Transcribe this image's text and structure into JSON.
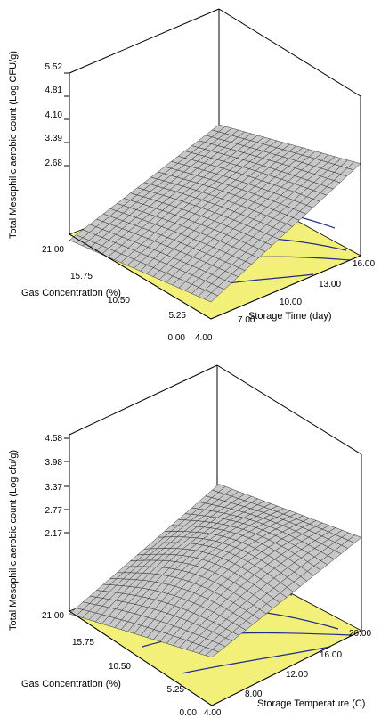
{
  "chart_data": [
    {
      "type": "surface",
      "zlabel": "Total Mesophilic aerobic count (Log CFU/g)",
      "xlabel": "Storage Time (day)",
      "ylabel": "Gas Concentration (%)",
      "z_ticks": [
        "2.68",
        "3.39",
        "4.10",
        "4.81",
        "5.52"
      ],
      "x_ticks": [
        "4.00",
        "7.00",
        "10.00",
        "13.00",
        "16.00"
      ],
      "y_ticks": [
        "0.00",
        "5.25",
        "10.50",
        "15.75",
        "21.00"
      ],
      "xlim": [
        4,
        16
      ],
      "ylim": [
        0,
        21
      ],
      "zlim": [
        2.68,
        5.52
      ],
      "corner_values": {
        "x_min_y_min": 3.2,
        "x_max_y_min": 5.5,
        "x_min_y_max": 2.5,
        "x_max_y_max": 4.1
      },
      "floor_color": "#f3f07a",
      "surface_color": "#c8c8c8",
      "contour_color": "#1e2c8f"
    },
    {
      "type": "surface",
      "zlabel": "Total Mesophilic aerobic count (Log cfu/g)",
      "xlabel": "Storage Temperature (C)",
      "ylabel": "Gas Concentration (%)",
      "z_ticks": [
        "2.17",
        "2.77",
        "3.37",
        "3.98",
        "4.58"
      ],
      "x_ticks": [
        "4.00",
        "8.00",
        "12.00",
        "16.00",
        "20.00"
      ],
      "y_ticks": [
        "0.00",
        "5.25",
        "10.50",
        "15.75",
        "21.00"
      ],
      "xlim": [
        4,
        20
      ],
      "ylim": [
        0,
        21
      ],
      "zlim": [
        2.17,
        4.58
      ],
      "corner_values": {
        "x_min_y_min": 3.4,
        "x_max_y_min": 4.55,
        "x_min_y_max": 2.1,
        "x_max_y_max": 3.5
      },
      "floor_color": "#f3f07a",
      "surface_color": "#c8c8c8",
      "contour_color": "#1e2c8f"
    }
  ]
}
